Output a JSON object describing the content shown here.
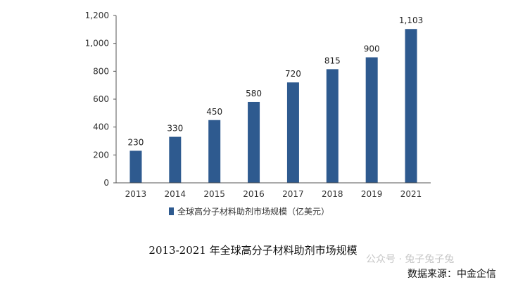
{
  "chart_data": {
    "type": "bar",
    "categories": [
      "2013",
      "2014",
      "2015",
      "2016",
      "2017",
      "2018",
      "2019",
      "2021"
    ],
    "values": [
      230,
      330,
      450,
      580,
      720,
      815,
      900,
      1103
    ],
    "value_labels": [
      "230",
      "330",
      "450",
      "580",
      "720",
      "815",
      "900",
      "1,103"
    ],
    "y_ticks": [
      "0",
      "200",
      "400",
      "600",
      "800",
      "1,000",
      "1,200"
    ],
    "ylim": [
      0,
      1200
    ],
    "series": [
      {
        "name": "全球高分子材料助剂市场规模（亿美元）",
        "values": [
          230,
          330,
          450,
          580,
          720,
          815,
          900,
          1103
        ]
      }
    ],
    "legend_position": "bottom",
    "grid": false,
    "bar_color": "#2e5a8f"
  },
  "caption": "2013-2021 年全球高分子材料助剂市场规模",
  "source": "数据来源：中金企信",
  "watermark": "公众号 · 兔子兔子兔"
}
